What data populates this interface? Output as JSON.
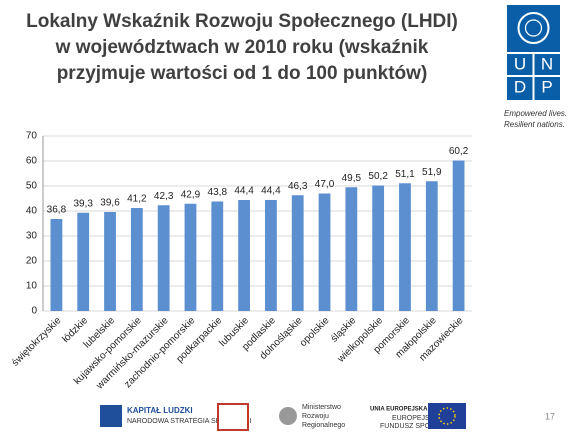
{
  "chart_data": {
    "type": "bar",
    "title": [
      "Lokalny Wskaźnik Rozwoju Społecznego (LHDI)",
      "w województwach w 2010 roku (wskaźnik",
      "przyjmuje wartości od 1 do 100 punktów)"
    ],
    "categories": [
      "świętokrzyskie",
      "łódzkie",
      "lubelskie",
      "kujawsko-pomorskie",
      "warmińsko-mazurskie",
      "zachodnio-pomorskie",
      "podkarpackie",
      "lubuskie",
      "podlaskie",
      "dolnośląskie",
      "opolskie",
      "śląskie",
      "wielkopolskie",
      "pomorskie",
      "małopolskie",
      "mazowieckie"
    ],
    "values": [
      36.8,
      39.3,
      39.6,
      41.2,
      42.3,
      42.9,
      43.8,
      44.4,
      44.4,
      46.3,
      47.0,
      49.5,
      50.2,
      51.1,
      51.9,
      60.2
    ],
    "value_labels": [
      "36,8",
      "39,3",
      "39,6",
      "41,2",
      "42,3",
      "42,9",
      "43,8",
      "44,4",
      "44,4",
      "46,3",
      "47,0",
      "49,5",
      "50,2",
      "51,1",
      "51,9",
      "60,2"
    ],
    "color": "#5b8fd0",
    "ylim": [
      0,
      70
    ],
    "yticks": [
      0,
      10,
      20,
      30,
      40,
      50,
      60,
      70
    ],
    "grid": true
  },
  "logo": {
    "letters": [
      "U",
      "N",
      "D",
      "P"
    ],
    "tagline": [
      "Empowered lives.",
      "Resilient nations."
    ]
  },
  "footer": {
    "kapital": "KAPITAŁ LUDZKI",
    "kapital_sub": "NARODOWA STRATEGIA SPÓJNOŚCI",
    "ministry": [
      "Ministerstwo",
      "Rozwoju",
      "Regionalnego"
    ],
    "eu": "UNIA EUROPEJSKA",
    "eu_sub": [
      "EUROPEJSKI",
      "FUNDUSZ SPOŁECZNY"
    ],
    "page_number": "17"
  }
}
